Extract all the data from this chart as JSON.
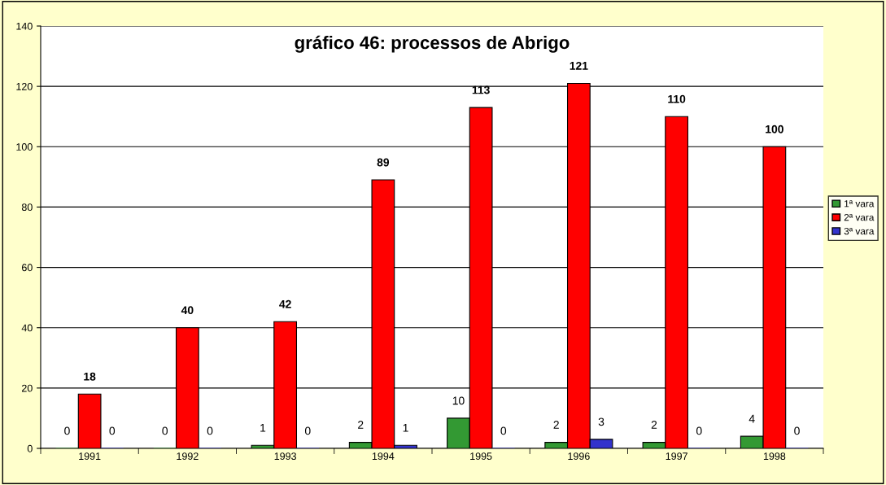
{
  "chart_data": {
    "type": "bar",
    "title": "gráfico 46: processos de Abrigo",
    "categories": [
      "1991",
      "1992",
      "1993",
      "1994",
      "1995",
      "1996",
      "1997",
      "1998"
    ],
    "series": [
      {
        "name": "1ª vara",
        "color": "#339933",
        "values": [
          0,
          0,
          1,
          2,
          10,
          2,
          2,
          4
        ]
      },
      {
        "name": "2ª vara",
        "color": "#ff0000",
        "values": [
          18,
          40,
          42,
          89,
          113,
          121,
          110,
          100
        ]
      },
      {
        "name": "3ª vara",
        "color": "#3333cc",
        "values": [
          0,
          0,
          0,
          1,
          0,
          3,
          0,
          0
        ]
      }
    ],
    "ylim": [
      0,
      140
    ],
    "yticks": [
      0,
      20,
      40,
      60,
      80,
      100,
      120,
      140
    ],
    "grid": "y",
    "legend": "right",
    "data_labels": true
  }
}
